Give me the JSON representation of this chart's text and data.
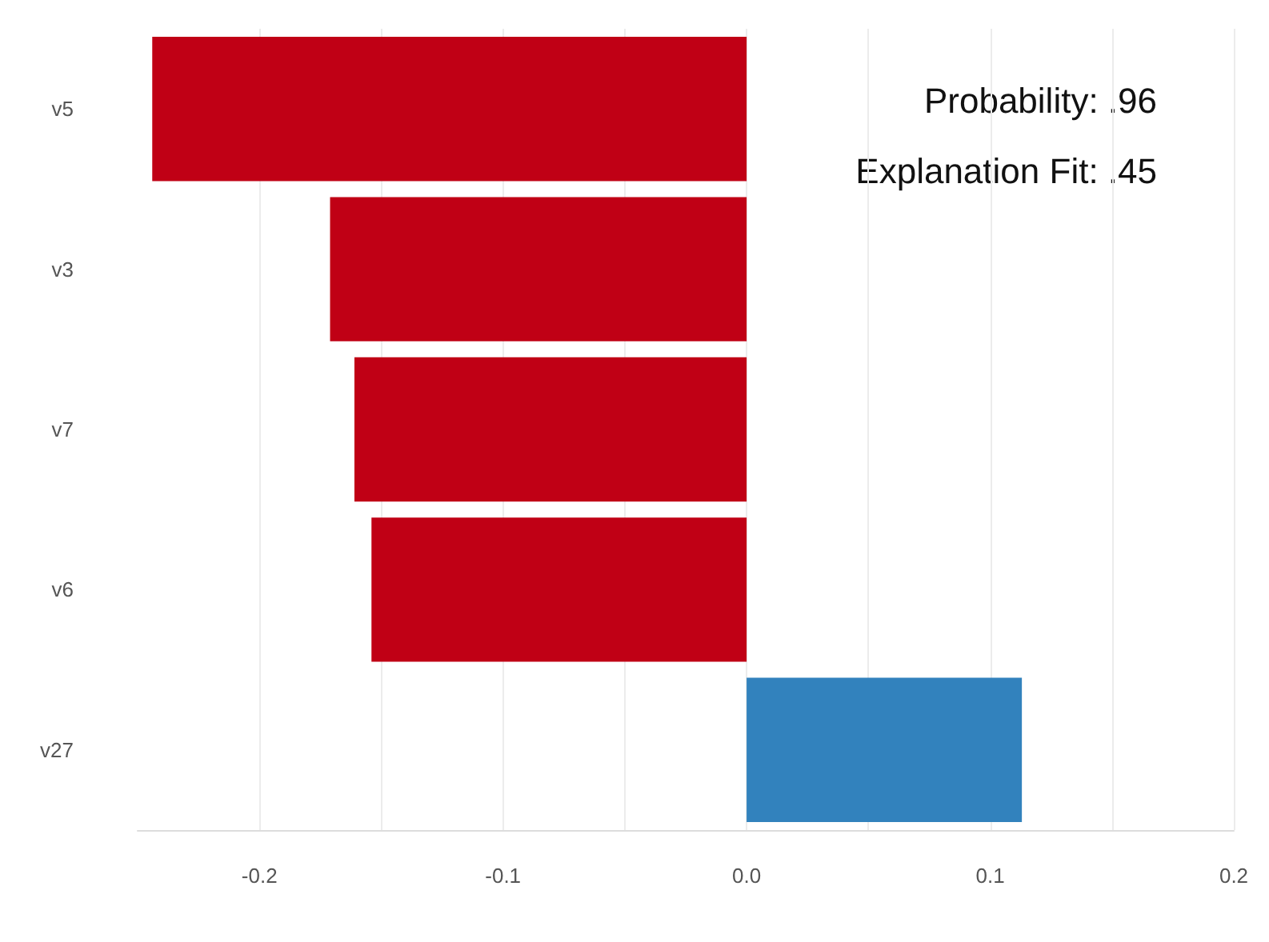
{
  "chart_data": {
    "type": "bar",
    "orientation": "horizontal",
    "categories": [
      "v5",
      "v3",
      "v7",
      "v6",
      "v27"
    ],
    "values": [
      -0.244,
      -0.171,
      -0.161,
      -0.154,
      0.113
    ],
    "colors": [
      "#c00015",
      "#c00015",
      "#c00015",
      "#c00015",
      "#3282bd"
    ],
    "xlim": [
      -0.25,
      0.2
    ],
    "xticks": [
      -0.2,
      -0.1,
      {
        "value": 0,
        "label": "0.0"
      },
      0.1,
      0.2
    ],
    "grid": "x",
    "annotations": [
      "Probability: .96",
      "Explanation Fit: .45"
    ]
  }
}
